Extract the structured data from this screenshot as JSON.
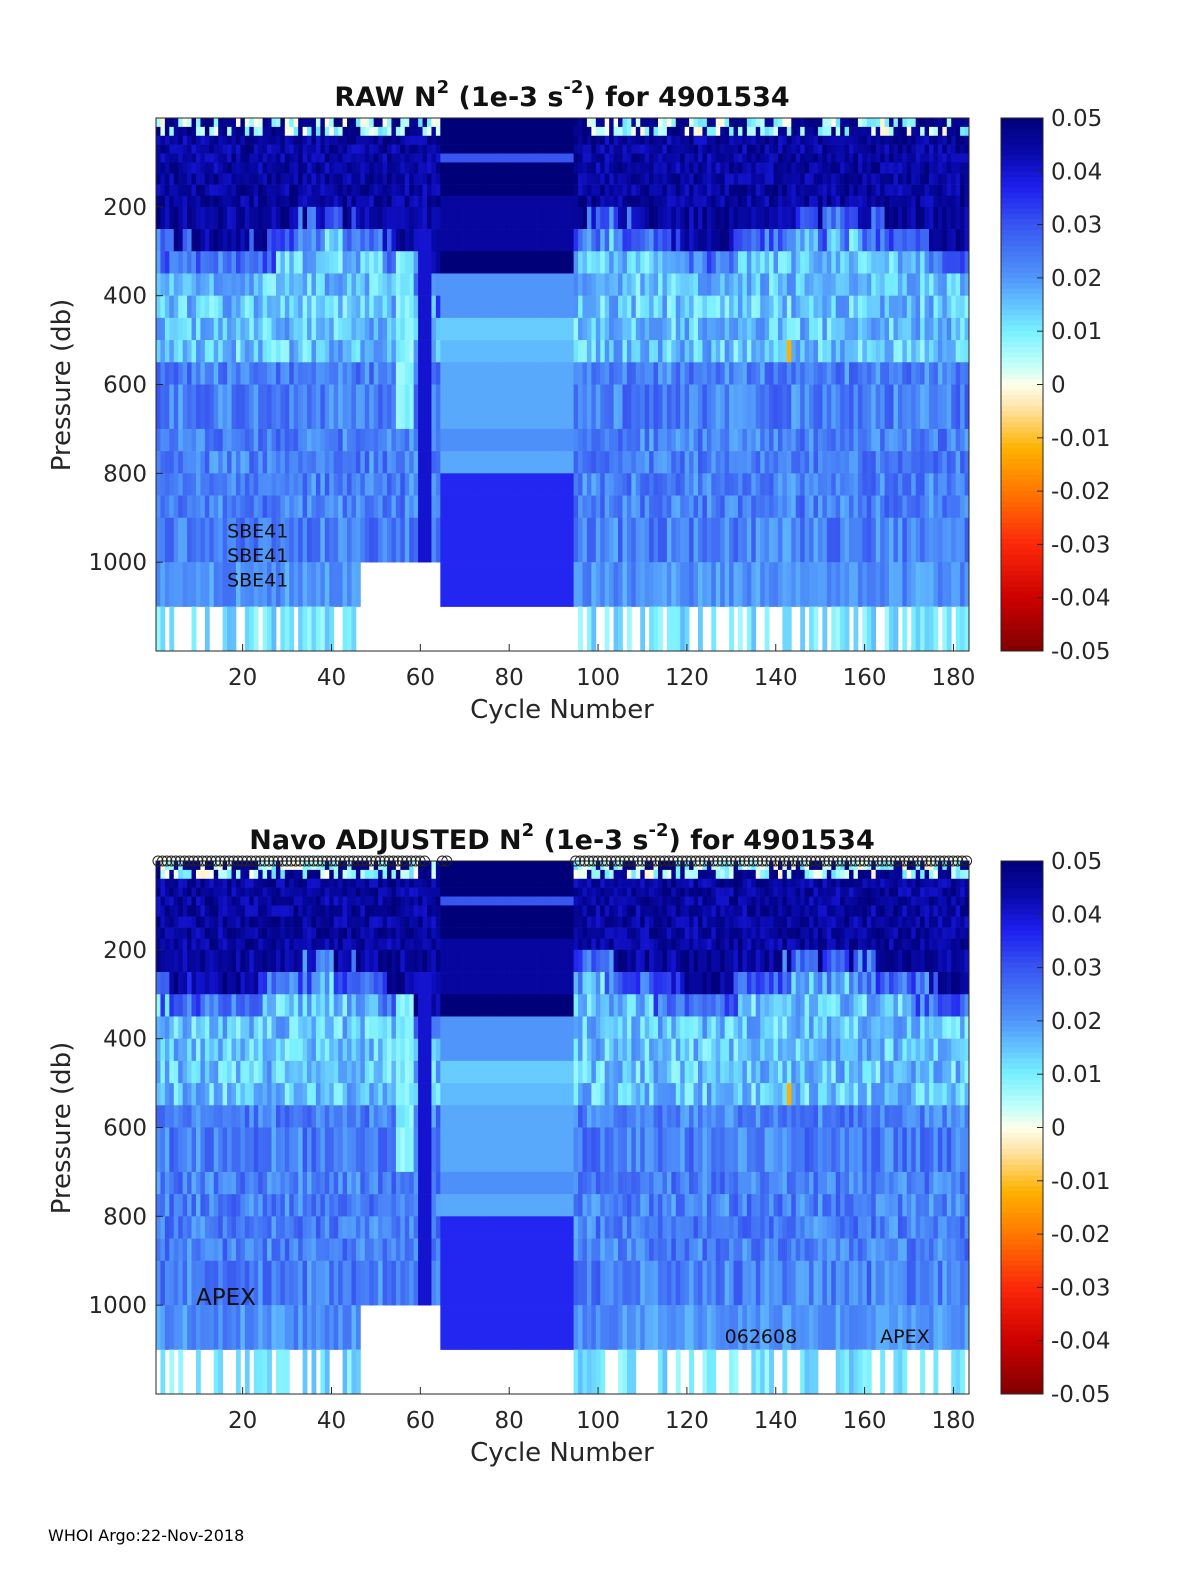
{
  "footer": "WHOI Argo:22-Nov-2018",
  "chart_data": [
    {
      "type": "heatmap",
      "title": {
        "prefix": "RAW N",
        "sup1": "2",
        "middle": " (1e-3 s",
        "sup2": "-2",
        "suffix": ") for 4901534"
      },
      "xlabel": "Cycle Number",
      "ylabel": "Pressure (db)",
      "xlim": [
        1,
        183
      ],
      "ylim": [
        1200,
        0
      ],
      "xticks": [
        20,
        40,
        60,
        80,
        100,
        120,
        140,
        160,
        180
      ],
      "yticks": [
        200,
        400,
        600,
        800,
        1000
      ],
      "colorbar": {
        "min": -0.05,
        "max": 0.05,
        "ticks": [
          "0.05",
          "0.04",
          "0.03",
          "0.02",
          "0.01",
          "0",
          "-0.01",
          "-0.02",
          "-0.03",
          "-0.04",
          "-0.05"
        ]
      },
      "annotations": [
        {
          "text": "SBE41",
          "x": 17,
          "y": 945
        },
        {
          "text": "SBE41",
          "x": 17,
          "y": 1000
        },
        {
          "text": "SBE41",
          "x": 17,
          "y": 1055
        }
      ],
      "profile_markers": false
    },
    {
      "type": "heatmap",
      "title": {
        "prefix": "Navo  ADJUSTED N",
        "sup1": "2",
        "middle": " (1e-3 s",
        "sup2": "-2",
        "suffix": ") for 4901534"
      },
      "xlabel": "Cycle Number",
      "ylabel": "Pressure (db)",
      "xlim": [
        1,
        183
      ],
      "ylim": [
        1200,
        0
      ],
      "xticks": [
        20,
        40,
        60,
        80,
        100,
        120,
        140,
        160,
        180
      ],
      "yticks": [
        200,
        400,
        600,
        800,
        1000
      ],
      "colorbar": {
        "min": -0.05,
        "max": 0.05,
        "ticks": [
          "0.05",
          "0.04",
          "0.03",
          "0.02",
          "0.01",
          "0",
          "-0.01",
          "-0.02",
          "-0.03",
          "-0.04",
          "-0.05"
        ]
      },
      "annotations": [
        {
          "text": "APEX",
          "x": 10,
          "y": 1000,
          "size": "large"
        },
        {
          "text": "062608",
          "x": 129,
          "y": 1085
        },
        {
          "text": "APEX",
          "x": 164,
          "y": 1085
        }
      ],
      "profile_markers": true
    }
  ],
  "field_description": {
    "gaps": [
      [
        47,
        64
      ]
    ],
    "uniform_block": {
      "x_range": [
        65,
        94
      ],
      "depth_bands": [
        [
          0,
          20,
          0.05
        ],
        [
          20,
          25,
          0.02
        ],
        [
          25,
          90,
          0.05
        ],
        [
          90,
          95,
          0.03
        ],
        [
          95,
          180,
          0.05
        ],
        [
          180,
          300,
          0.045
        ],
        [
          300,
          340,
          0.05
        ],
        [
          340,
          370,
          0.03
        ],
        [
          370,
          450,
          0.02
        ],
        [
          450,
          500,
          0.014
        ],
        [
          500,
          550,
          0.016
        ],
        [
          550,
          670,
          0.018
        ],
        [
          670,
          750,
          0.021
        ],
        [
          750,
          825,
          0.018
        ],
        [
          825,
          1100,
          0.036
        ]
      ]
    },
    "depth_levels": [
      0,
      20,
      40,
      60,
      80,
      100,
      125,
      150,
      175,
      200,
      250,
      300,
      350,
      400,
      450,
      500,
      550,
      600,
      700,
      750,
      800,
      850,
      900,
      1000,
      1100,
      1200
    ],
    "anomaly": {
      "cycle": 143,
      "pressure": [
        500,
        550
      ],
      "value": -0.012
    }
  }
}
